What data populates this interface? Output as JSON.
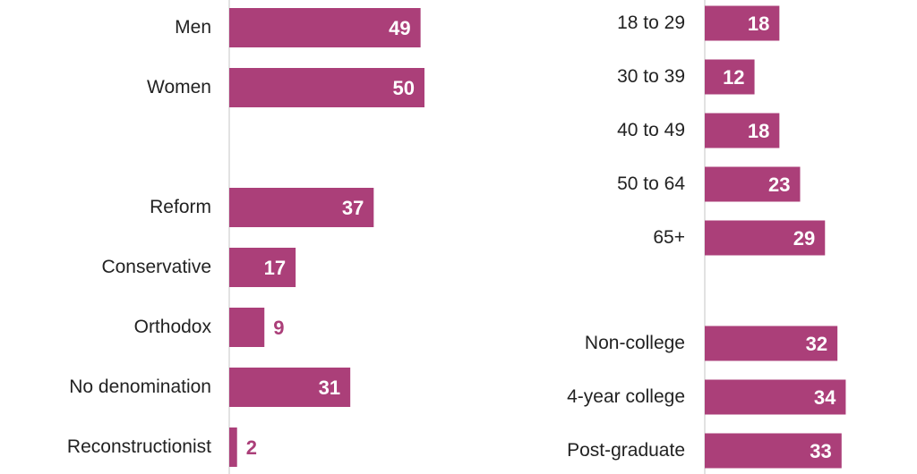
{
  "colors": {
    "bar": "#ab3f79",
    "value_inside": "#ffffff",
    "value_outside": "#ab3f79",
    "axis": "#d9d9d9",
    "label": "#222222"
  },
  "chart_data": [
    {
      "type": "bar",
      "orientation": "horizontal",
      "categories": [
        "Men",
        "Women",
        "Reform",
        "Conservative",
        "Orthodox",
        "No denomination",
        "Reconstructionist"
      ],
      "values": [
        49,
        50,
        37,
        17,
        9,
        31,
        2
      ],
      "data_labels": [
        "49",
        "50",
        "37",
        "17",
        "9",
        "31",
        "2"
      ],
      "title": "",
      "xlabel": "",
      "ylabel": "",
      "xlim": [
        0,
        100
      ],
      "grid": false
    },
    {
      "type": "bar",
      "orientation": "horizontal",
      "categories": [
        "18 to 29",
        "30 to 39",
        "40 to 49",
        "50 to 64",
        "65+",
        "Non-college",
        "4-year college",
        "Post-graduate"
      ],
      "values": [
        18,
        12,
        18,
        23,
        29,
        32,
        34,
        33
      ],
      "data_labels": [
        "18",
        "12",
        "18",
        "23",
        "29",
        "32",
        "34",
        "33"
      ],
      "title": "",
      "xlabel": "",
      "ylabel": "",
      "xlim": [
        0,
        100
      ],
      "grid": false
    }
  ]
}
